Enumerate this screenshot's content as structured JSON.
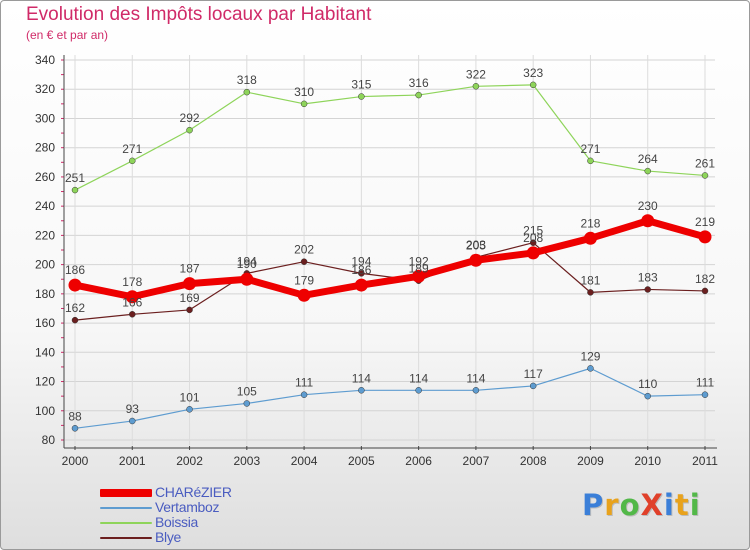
{
  "header": {
    "title": "Evolution des Impôts locaux par Habitant",
    "subtitle": "(en € et par an)"
  },
  "logo": {
    "text": "ProXiti",
    "letter_colors": [
      "#3b7fd8",
      "#e8a21c",
      "#52b848",
      "#e0402a",
      "#3b7fd8",
      "#e8a21c",
      "#52b848"
    ]
  },
  "chart_data": {
    "type": "line",
    "title": "Evolution des Impôts locaux par Habitant",
    "subtitle": "(en € et par an)",
    "x": [
      "2000",
      "2001",
      "2002",
      "2003",
      "2004",
      "2005",
      "2006",
      "2007",
      "2008",
      "2009",
      "2010",
      "2011"
    ],
    "ylim": [
      80,
      340
    ],
    "y_ticks": [
      80,
      100,
      120,
      140,
      160,
      180,
      200,
      220,
      240,
      260,
      280,
      300,
      320,
      340
    ],
    "grid": true,
    "legend_position": "bottom-left",
    "series": [
      {
        "name": "CHARéZIER",
        "color": "#ee0000",
        "values": [
          186,
          178,
          187,
          190,
          179,
          186,
          192,
          203,
          208,
          218,
          230,
          219
        ]
      },
      {
        "name": "Vertamboz",
        "color": "#5e9cd0",
        "values": [
          88,
          93,
          101,
          105,
          111,
          114,
          114,
          114,
          117,
          129,
          110,
          111
        ]
      },
      {
        "name": "Boissia",
        "color": "#8ed45a",
        "values": [
          251,
          271,
          292,
          318,
          310,
          315,
          316,
          322,
          323,
          271,
          264,
          261
        ]
      },
      {
        "name": "Blye",
        "color": "#6b1f1f",
        "values": [
          162,
          166,
          169,
          194,
          202,
          194,
          189,
          205,
          215,
          181,
          183,
          182
        ]
      }
    ]
  }
}
